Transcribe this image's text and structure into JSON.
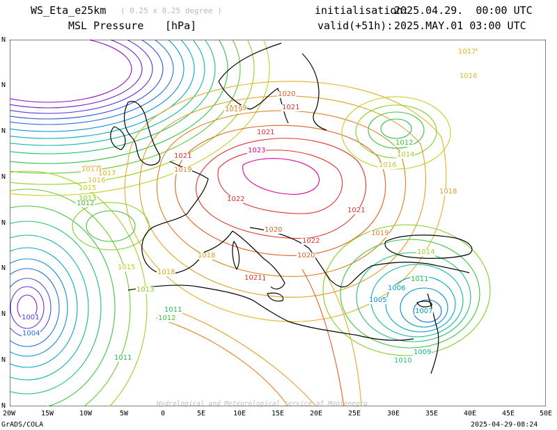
{
  "header": {
    "model": "WS_Eta_e25km",
    "resolution": "( 0.25 x 0.25 degree )",
    "variable": "MSL Pressure",
    "units": "[hPa]",
    "init_label": "initialisation:",
    "init_value": "2025.04.29.  00:00 UTC",
    "valid_label": "valid(+51h):",
    "valid_value": "2025.MAY.01 03:00 UTC"
  },
  "axis": {
    "lon_ticks": [
      "20W",
      "15W",
      "10W",
      "5W",
      "0",
      "5E",
      "10E",
      "15E",
      "20E",
      "25E",
      "30E",
      "35E",
      "40E",
      "45E",
      "50E"
    ],
    "lat_ticks": [
      "N",
      "N",
      "N",
      "N",
      "N",
      "N",
      "N",
      "N",
      "N"
    ]
  },
  "watermark": "Hydrological and Meteorological service of Montenegro",
  "footer": {
    "left": "GrADS/COLA",
    "right": "2025-04-29-08:24"
  },
  "colors": {
    "high": "#e0009a",
    "mid_red": "#e03030",
    "orange": "#e08020",
    "yellow": "#e8c020",
    "green": "#30c030",
    "cyan": "#00b0c8",
    "blue": "#2050e0",
    "purple": "#8020d0"
  },
  "contour_labels": [
    {
      "text": "1023",
      "color": "#e0009a"
    },
    {
      "text": "1022",
      "color": "#e03030"
    },
    {
      "text": "1022",
      "color": "#e03030"
    },
    {
      "text": "1021",
      "color": "#e03030"
    },
    {
      "text": "1021",
      "color": "#e03030"
    },
    {
      "text": "1021",
      "color": "#e03030"
    },
    {
      "text": "1021",
      "color": "#e03030"
    },
    {
      "text": "1021",
      "color": "#e03030"
    },
    {
      "text": "1020",
      "color": "#e06020"
    },
    {
      "text": "1020",
      "color": "#e06020"
    },
    {
      "text": "1020",
      "color": "#e06020"
    },
    {
      "text": "1019",
      "color": "#e08020"
    },
    {
      "text": "1019",
      "color": "#e08020"
    },
    {
      "text": "1019",
      "color": "#e08020"
    },
    {
      "text": "1019",
      "color": "#e08020"
    },
    {
      "text": "1018",
      "color": "#e0a020"
    },
    {
      "text": "1018",
      "color": "#e0a020"
    },
    {
      "text": "1018",
      "color": "#e0a020"
    },
    {
      "text": "1018",
      "color": "#e0a020"
    },
    {
      "text": "1017",
      "color": "#e0b020"
    },
    {
      "text": "1017",
      "color": "#e0b020"
    },
    {
      "text": "1017",
      "color": "#e0b020"
    },
    {
      "text": "1016",
      "color": "#d0c020"
    },
    {
      "text": "1016",
      "color": "#d0c020"
    },
    {
      "text": "1016",
      "color": "#d0c020"
    },
    {
      "text": "1015",
      "color": "#c0d020"
    },
    {
      "text": "1015",
      "color": "#c0d020"
    },
    {
      "text": "1014",
      "color": "#a0d020"
    },
    {
      "text": "1014",
      "color": "#a0d020"
    },
    {
      "text": "1013",
      "color": "#80d020"
    },
    {
      "text": "1013",
      "color": "#80d020"
    },
    {
      "text": "1012",
      "color": "#40c030"
    },
    {
      "text": "1012",
      "color": "#40c030"
    },
    {
      "text": "1012",
      "color": "#40c030"
    },
    {
      "text": "1011",
      "color": "#20c050"
    },
    {
      "text": "1011",
      "color": "#20c050"
    },
    {
      "text": "1011",
      "color": "#20c050"
    },
    {
      "text": "1010",
      "color": "#20c080"
    },
    {
      "text": "1009",
      "color": "#10b0a0"
    },
    {
      "text": "1007",
      "color": "#00a0c8"
    },
    {
      "text": "1006",
      "color": "#00a0c8"
    },
    {
      "text": "1005",
      "color": "#0090d0"
    },
    {
      "text": "1004",
      "color": "#2070e0"
    },
    {
      "text": "1001",
      "color": "#4040e0"
    },
    {
      "text": "1021",
      "color": "#e03030"
    },
    {
      "text": "1017",
      "color": "#e0b020"
    }
  ]
}
